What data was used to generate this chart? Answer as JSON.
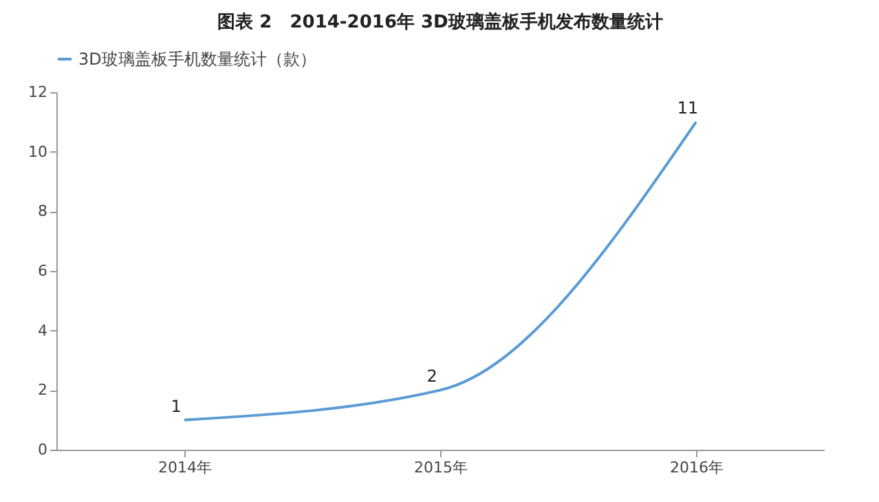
{
  "chart_data": {
    "type": "line",
    "title": "图表 2　2014-2016年 3D玻璃盖板手机发布数量统计",
    "categories": [
      "2014年",
      "2015年",
      "2016年"
    ],
    "series": [
      {
        "name": "3D玻璃盖板手机数量统计（款）",
        "color": "#5b9bd5",
        "values": [
          1,
          2,
          11
        ]
      }
    ],
    "ylim": [
      0,
      12
    ],
    "yticks": [
      0,
      2,
      4,
      6,
      8,
      10,
      12
    ],
    "data_labels": true,
    "legend": "top"
  }
}
